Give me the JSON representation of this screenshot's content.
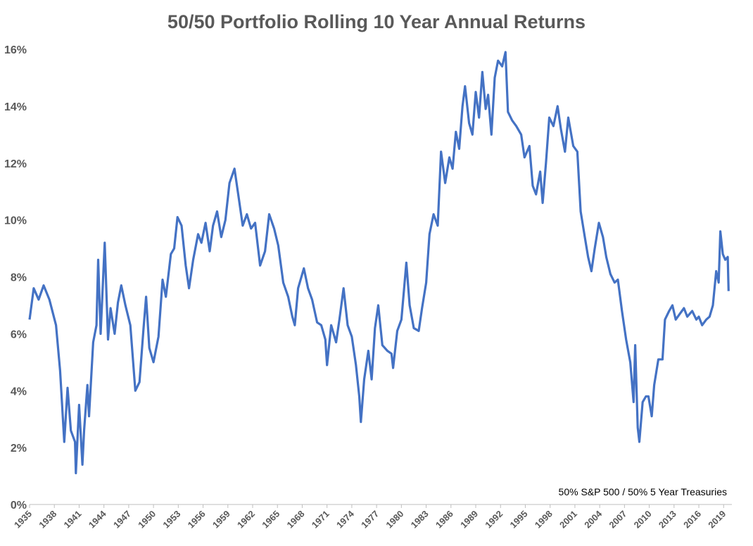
{
  "chart_data": {
    "type": "line",
    "title": "50/50 Portfolio Rolling 10 Year Annual Returns",
    "annotation": "50% S&P 500 / 50% 5 Year Treasuries",
    "color": "#4472c4",
    "grid": false,
    "xlim": [
      1935,
      2020
    ],
    "xticks": [
      1935,
      1938,
      1941,
      1944,
      1947,
      1950,
      1953,
      1956,
      1959,
      1962,
      1965,
      1968,
      1971,
      1974,
      1977,
      1980,
      1983,
      1986,
      1989,
      1992,
      1995,
      1998,
      2001,
      2004,
      2007,
      2010,
      2013,
      2016,
      2019
    ],
    "ylim": [
      0,
      16
    ],
    "yticks": [
      {
        "value": 0,
        "label": "0%"
      },
      {
        "value": 2,
        "label": "2%"
      },
      {
        "value": 4,
        "label": "4%"
      },
      {
        "value": 6,
        "label": "6%"
      },
      {
        "value": 8,
        "label": "8%"
      },
      {
        "value": 10,
        "label": "10%"
      },
      {
        "value": 12,
        "label": "12%"
      },
      {
        "value": 14,
        "label": "14%"
      },
      {
        "value": 16,
        "label": "16%"
      }
    ],
    "x": [
      1935.0,
      1935.5,
      1936.1,
      1936.7,
      1937.4,
      1938.2,
      1938.7,
      1939.2,
      1939.6,
      1940.0,
      1940.5,
      1940.6,
      1941.0,
      1941.4,
      1941.6,
      1942.0,
      1942.2,
      1942.7,
      1943.1,
      1943.3,
      1943.6,
      1944.1,
      1944.5,
      1944.8,
      1945.3,
      1945.7,
      1946.1,
      1946.6,
      1947.2,
      1947.8,
      1948.3,
      1948.8,
      1949.1,
      1949.5,
      1950.0,
      1950.6,
      1951.1,
      1951.5,
      1952.1,
      1952.5,
      1952.9,
      1953.4,
      1953.9,
      1954.3,
      1954.8,
      1955.4,
      1955.8,
      1956.3,
      1956.8,
      1957.2,
      1957.7,
      1958.2,
      1958.7,
      1959.2,
      1959.8,
      1960.3,
      1960.8,
      1961.3,
      1961.8,
      1962.3,
      1962.9,
      1963.5,
      1964.0,
      1964.6,
      1965.1,
      1965.7,
      1966.3,
      1966.8,
      1967.1,
      1967.5,
      1968.2,
      1968.7,
      1969.2,
      1969.8,
      1970.3,
      1970.8,
      1971.0,
      1971.5,
      1972.1,
      1972.5,
      1973.0,
      1973.5,
      1974.0,
      1974.5,
      1974.9,
      1975.1,
      1975.5,
      1976.0,
      1976.4,
      1976.8,
      1977.2,
      1977.7,
      1978.3,
      1978.8,
      1979.0,
      1979.5,
      1980.0,
      1980.6,
      1981.0,
      1981.5,
      1982.1,
      1982.5,
      1983.0,
      1983.4,
      1983.9,
      1984.4,
      1984.8,
      1985.3,
      1985.8,
      1986.2,
      1986.6,
      1987.0,
      1987.4,
      1987.7,
      1988.2,
      1988.6,
      1989.0,
      1989.4,
      1989.8,
      1990.2,
      1990.5,
      1990.9,
      1991.3,
      1991.7,
      1992.2,
      1992.6,
      1992.9,
      1993.4,
      1993.9,
      1994.5,
      1994.9,
      1995.5,
      1995.9,
      1996.3,
      1996.8,
      1997.1,
      1997.5,
      1997.9,
      1998.4,
      1998.9,
      1999.3,
      1999.8,
      2000.2,
      2000.8,
      2001.3,
      2001.7,
      2002.2,
      2002.6,
      2003.0,
      2003.4,
      2003.9,
      2004.4,
      2004.8,
      2005.3,
      2005.8,
      2006.2,
      2006.7,
      2007.2,
      2007.7,
      2008.1,
      2008.3,
      2008.6,
      2008.8,
      2009.2,
      2009.6,
      2009.9,
      2010.3,
      2010.6,
      2011.1,
      2011.6,
      2011.9,
      2012.4,
      2012.8,
      2013.2,
      2013.7,
      2014.2,
      2014.6,
      2015.2,
      2015.7,
      2016.0,
      2016.4,
      2016.9,
      2017.3,
      2017.7,
      2018.1,
      2018.4,
      2018.6,
      2018.9,
      2019.2,
      2019.5,
      2019.6
    ],
    "values": [
      6.5,
      7.6,
      7.2,
      7.7,
      7.2,
      6.3,
      4.7,
      2.2,
      4.1,
      2.6,
      2.2,
      1.1,
      3.5,
      1.4,
      2.6,
      4.2,
      3.1,
      5.7,
      6.3,
      8.6,
      6.0,
      9.2,
      5.8,
      6.9,
      6.0,
      7.1,
      7.7,
      7.0,
      6.3,
      4.0,
      4.3,
      6.2,
      7.3,
      5.5,
      5.0,
      5.9,
      7.9,
      7.3,
      8.8,
      9.0,
      10.1,
      9.8,
      8.4,
      7.6,
      8.6,
      9.5,
      9.2,
      9.9,
      8.9,
      9.8,
      10.3,
      9.4,
      10.0,
      11.3,
      11.8,
      10.8,
      9.8,
      10.2,
      9.7,
      9.9,
      8.4,
      8.9,
      10.2,
      9.7,
      9.1,
      7.8,
      7.3,
      6.6,
      6.3,
      7.6,
      8.3,
      7.6,
      7.2,
      6.4,
      6.3,
      5.8,
      4.9,
      6.3,
      5.7,
      6.5,
      7.6,
      6.3,
      5.9,
      4.9,
      3.8,
      2.9,
      4.4,
      5.4,
      4.4,
      6.2,
      7.0,
      5.6,
      5.4,
      5.3,
      4.8,
      6.1,
      6.5,
      8.5,
      7.0,
      6.2,
      6.1,
      6.9,
      7.8,
      9.5,
      10.2,
      9.8,
      12.4,
      11.3,
      12.2,
      11.8,
      13.1,
      12.5,
      14.0,
      14.7,
      13.4,
      13.0,
      14.5,
      13.6,
      15.2,
      13.9,
      14.4,
      13.0,
      15.0,
      15.6,
      15.4,
      15.9,
      13.8,
      13.5,
      13.3,
      13.0,
      12.2,
      12.6,
      11.2,
      10.9,
      11.7,
      10.6,
      12.0,
      13.6,
      13.3,
      14.0,
      13.2,
      12.4,
      13.6,
      12.6,
      12.4,
      10.3,
      9.4,
      8.7,
      8.2,
      9.0,
      9.9,
      9.4,
      8.7,
      8.1,
      7.8,
      7.9,
      6.8,
      5.8,
      5.0,
      3.6,
      5.6,
      2.7,
      2.2,
      3.6,
      3.8,
      3.8,
      3.1,
      4.2,
      5.1,
      5.1,
      6.5,
      6.8,
      7.0,
      6.5,
      6.7,
      6.9,
      6.6,
      6.8,
      6.5,
      6.6,
      6.3,
      6.5,
      6.6,
      7.0,
      8.2,
      7.8,
      9.6,
      8.8,
      8.6,
      8.7,
      7.5
    ]
  }
}
